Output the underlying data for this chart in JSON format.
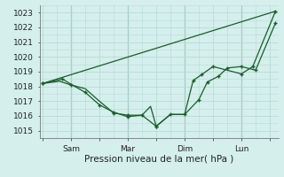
{
  "bg_color": "#d4efec",
  "plot_bg_color": "#d4efec",
  "grid_color": "#b8dbd7",
  "line_color": "#1a5c2a",
  "vline_color": "#5a8a7a",
  "ylabel": "Pression niveau de la mer( hPa )",
  "ylim": [
    1014.5,
    1023.5
  ],
  "yticks": [
    1015,
    1016,
    1017,
    1018,
    1019,
    1020,
    1021,
    1022,
    1023
  ],
  "xlim": [
    -0.1,
    8.3
  ],
  "xtick_labels": [
    "",
    "Sam",
    "",
    "Mar",
    "",
    "Dim",
    "",
    "Lun",
    ""
  ],
  "xtick_pos": [
    0,
    1,
    2,
    3,
    4,
    5,
    6,
    7,
    8
  ],
  "vline_positions": [
    1,
    3,
    5,
    7
  ],
  "line1_x": [
    0,
    8.2
  ],
  "line1_y": [
    1018.2,
    1023.1
  ],
  "line2_x": [
    0,
    0.6,
    1.0,
    1.5,
    2.0,
    2.5,
    3.0,
    3.5,
    4.0,
    4.5,
    5.0,
    5.5,
    5.8,
    6.2,
    6.5,
    7.0,
    7.5,
    8.2
  ],
  "line2_y": [
    1018.2,
    1018.35,
    1018.1,
    1017.85,
    1017.0,
    1016.2,
    1016.05,
    1016.05,
    1015.3,
    1016.1,
    1016.1,
    1017.1,
    1018.3,
    1018.7,
    1019.25,
    1019.35,
    1019.1,
    1022.3
  ],
  "line2_markers_x": [
    0,
    1.0,
    2.5,
    3.0,
    4.0,
    4.5,
    5.0,
    5.5,
    5.8,
    6.2,
    6.5,
    7.0,
    7.5,
    8.2
  ],
  "line2_markers_y": [
    1018.2,
    1018.1,
    1016.2,
    1016.05,
    1015.3,
    1016.1,
    1016.1,
    1017.1,
    1018.3,
    1018.7,
    1019.25,
    1019.35,
    1019.1,
    1022.3
  ],
  "line3_x": [
    0,
    0.7,
    1.0,
    1.5,
    2.0,
    2.5,
    3.0,
    3.5,
    3.8,
    4.0,
    4.5,
    5.0,
    5.3,
    5.6,
    6.0,
    6.5,
    7.0,
    7.4,
    8.2
  ],
  "line3_y": [
    1018.2,
    1018.5,
    1018.15,
    1017.6,
    1016.75,
    1016.25,
    1015.95,
    1016.05,
    1016.65,
    1015.3,
    1016.1,
    1016.1,
    1018.4,
    1018.8,
    1019.35,
    1019.1,
    1018.85,
    1019.35,
    1023.1
  ],
  "line3_markers_x": [
    0,
    0.7,
    1.5,
    2.0,
    2.5,
    3.0,
    3.5,
    4.0,
    5.3,
    5.6,
    6.0,
    7.0,
    7.4,
    8.2
  ],
  "line3_markers_y": [
    1018.2,
    1018.5,
    1017.6,
    1016.75,
    1016.25,
    1015.95,
    1016.05,
    1015.3,
    1018.4,
    1018.8,
    1019.35,
    1018.85,
    1019.35,
    1023.1
  ],
  "fontsize_tick": 6.5,
  "fontsize_xlabel": 7.5
}
